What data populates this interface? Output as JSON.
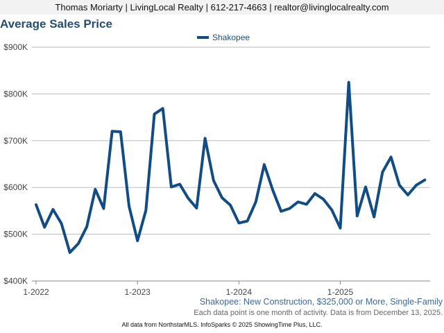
{
  "header": {
    "contact_line": "Thomas Moriarty | LivingLocal Realty | 612-217-4663 | realtor@livinglocalrealty.com"
  },
  "caption": "Shakopee: New Construction, $325,000 or More, Single-Family",
  "note": "Each data point is one month of activity. Data is from December 13, 2025.",
  "footer": "All data from NorthstarMLS. InfoSparks © 2025 ShowingTime Plus, LLC.",
  "colors": {
    "series": "#0e4c8a",
    "title": "#1f4e79",
    "grid": "#bbbbbb"
  },
  "chart_data": {
    "type": "line",
    "title": "Average Sales Price",
    "xlabel": "",
    "ylabel": "",
    "ylim": [
      400000,
      900000
    ],
    "y_ticks": [
      400000,
      500000,
      600000,
      700000,
      800000,
      900000
    ],
    "y_tick_labels": [
      "$400K",
      "$500K",
      "$600K",
      "$700K",
      "$800K",
      "$900K"
    ],
    "x_tick_labels": [
      "1-2022",
      "1-2023",
      "1-2024",
      "1-2025"
    ],
    "grid": true,
    "legend": "top-center",
    "x": [
      "2022-01",
      "2022-02",
      "2022-03",
      "2022-04",
      "2022-05",
      "2022-06",
      "2022-07",
      "2022-08",
      "2022-09",
      "2022-10",
      "2022-11",
      "2022-12",
      "2023-01",
      "2023-02",
      "2023-03",
      "2023-04",
      "2023-05",
      "2023-06",
      "2023-07",
      "2023-08",
      "2023-09",
      "2023-10",
      "2023-11",
      "2023-12",
      "2024-01",
      "2024-02",
      "2024-03",
      "2024-04",
      "2024-05",
      "2024-06",
      "2024-07",
      "2024-08",
      "2024-09",
      "2024-10",
      "2024-11",
      "2024-12",
      "2025-01",
      "2025-02",
      "2025-03",
      "2025-04",
      "2025-05",
      "2025-06",
      "2025-07",
      "2025-08",
      "2025-09",
      "2025-10",
      "2025-11"
    ],
    "series": [
      {
        "name": "Shakopee",
        "values": [
          563000,
          515000,
          553000,
          523000,
          461000,
          480000,
          516000,
          596000,
          555000,
          720000,
          719000,
          560000,
          486000,
          551000,
          757000,
          769000,
          601000,
          607000,
          577000,
          556000,
          705000,
          615000,
          578000,
          562000,
          524000,
          528000,
          569000,
          649000,
          595000,
          549000,
          555000,
          569000,
          564000,
          587000,
          575000,
          552000,
          513000,
          825000,
          539000,
          601000,
          537000,
          633000,
          665000,
          605000,
          584000,
          605000,
          616000
        ]
      }
    ]
  }
}
